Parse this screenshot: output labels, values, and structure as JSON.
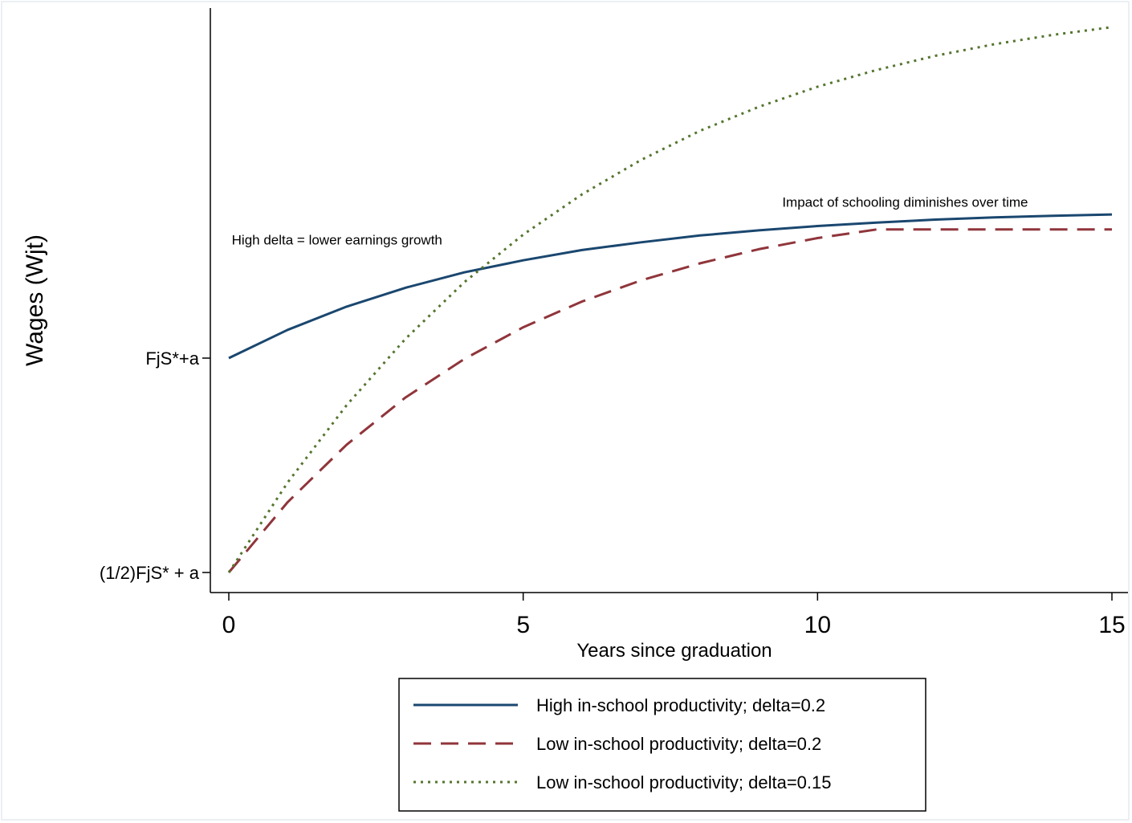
{
  "chart_data": {
    "type": "line",
    "title": "",
    "xlabel": "Years since graduation",
    "ylabel": "Wages (Wjt)",
    "xlim": [
      -0.3,
      15.3
    ],
    "ylim": [
      0,
      1.28
    ],
    "x_ticks": [
      0,
      5,
      10,
      15
    ],
    "y_ticks": [
      {
        "value": 0,
        "label": "(1/2)FjS* + a"
      },
      {
        "value": 0.5,
        "label": "FjS*+a"
      }
    ],
    "grid": false,
    "legend_position": "bottom",
    "series": [
      {
        "name": "High in-school productivity; delta=0.2",
        "color": "#1a476f",
        "style": "solid",
        "x": [
          0,
          1,
          2,
          3,
          4,
          5,
          6,
          7,
          8,
          9,
          10,
          11,
          12,
          13,
          14,
          15
        ],
        "y": [
          0.5,
          0.566,
          0.62,
          0.664,
          0.7,
          0.728,
          0.752,
          0.77,
          0.786,
          0.798,
          0.808,
          0.816,
          0.823,
          0.828,
          0.832,
          0.835
        ]
      },
      {
        "name": "Low in-school productivity; delta=0.2",
        "color": "#90353b",
        "style": "dashed",
        "x": [
          0,
          1,
          2,
          3,
          4,
          5,
          6,
          7,
          8,
          9,
          10,
          11,
          12,
          13,
          14,
          15
        ],
        "y": [
          0.0,
          0.164,
          0.298,
          0.408,
          0.498,
          0.572,
          0.632,
          0.681,
          0.721,
          0.754,
          0.78,
          0.8,
          0.8,
          0.8,
          0.8,
          0.8
        ]
      },
      {
        "name": "Low in-school productivity; delta=0.15",
        "color": "#55752f",
        "style": "dotted",
        "x": [
          0,
          1,
          2,
          3,
          4,
          5,
          6,
          7,
          8,
          9,
          10,
          11,
          12,
          13,
          14,
          15
        ],
        "y": [
          0.0,
          0.21,
          0.39,
          0.545,
          0.677,
          0.788,
          0.882,
          0.962,
          1.03,
          1.086,
          1.133,
          1.172,
          1.205,
          1.232,
          1.254,
          1.272
        ]
      }
    ],
    "annotations": [
      {
        "text": "High delta = lower earnings growth",
        "x": 0.05,
        "y": 0.765
      },
      {
        "text": "Impact of schooling diminishes over time",
        "x": 9.4,
        "y": 0.853
      }
    ]
  }
}
